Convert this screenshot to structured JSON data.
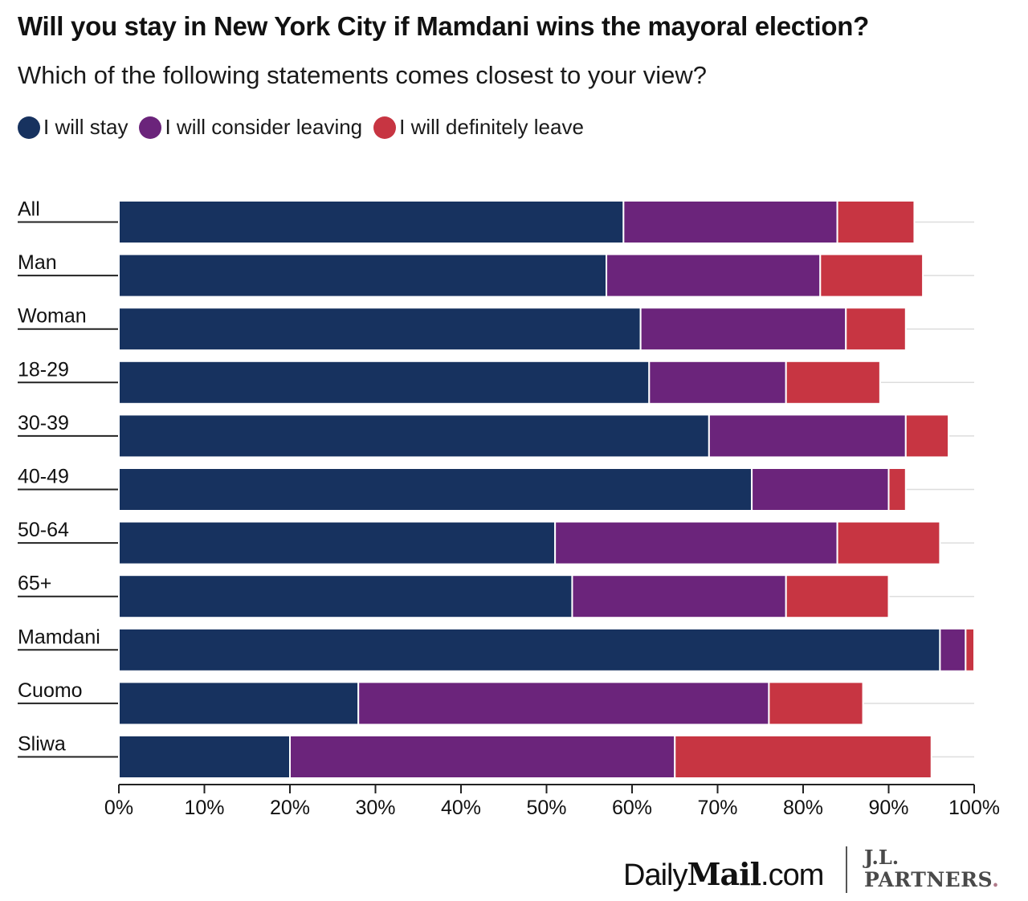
{
  "header": {
    "title": "Will you stay in New York City if Mamdani wins the mayoral election?",
    "subtitle": "Which of the following statements comes closest to your view?"
  },
  "legend": [
    {
      "label": "I will stay",
      "color": "#17325f"
    },
    {
      "label": "I will consider leaving",
      "color": "#6b247b"
    },
    {
      "label": "I will definitely leave",
      "color": "#c73542"
    }
  ],
  "chart_data": {
    "type": "bar",
    "orientation": "horizontal",
    "stacked": true,
    "title": "Will you stay in New York City if Mamdani wins the mayoral election?",
    "subtitle": "Which of the following statements comes closest to your view?",
    "categories": [
      "All",
      "Man",
      "Woman",
      "18-29",
      "30-39",
      "40-49",
      "50-64",
      "65+",
      "Mamdani",
      "Cuomo",
      "Sliwa"
    ],
    "series": [
      {
        "name": "I will stay",
        "color": "#17325f",
        "values": [
          59,
          57,
          61,
          62,
          69,
          74,
          51,
          53,
          96,
          28,
          20
        ]
      },
      {
        "name": "I will consider leaving",
        "color": "#6b247b",
        "values": [
          25,
          25,
          24,
          16,
          23,
          16,
          33,
          25,
          3,
          48,
          45
        ]
      },
      {
        "name": "I will definitely leave",
        "color": "#c73542",
        "values": [
          9,
          12,
          7,
          11,
          5,
          2,
          12,
          12,
          1,
          11,
          30
        ]
      }
    ],
    "xlim": [
      0,
      100
    ],
    "xticks": [
      "0%",
      "10%",
      "20%",
      "30%",
      "40%",
      "50%",
      "60%",
      "70%",
      "80%",
      "90%",
      "100%"
    ],
    "xlabel": "",
    "ylabel": "",
    "legend_position": "top-left",
    "grid": true
  },
  "footer": {
    "logo_daily": "Daily",
    "logo_mail": "Mail",
    "logo_com": ".com",
    "logo_jl": "J.L.",
    "logo_partners": "PARTNERS",
    "logo_partners_dot": "."
  }
}
